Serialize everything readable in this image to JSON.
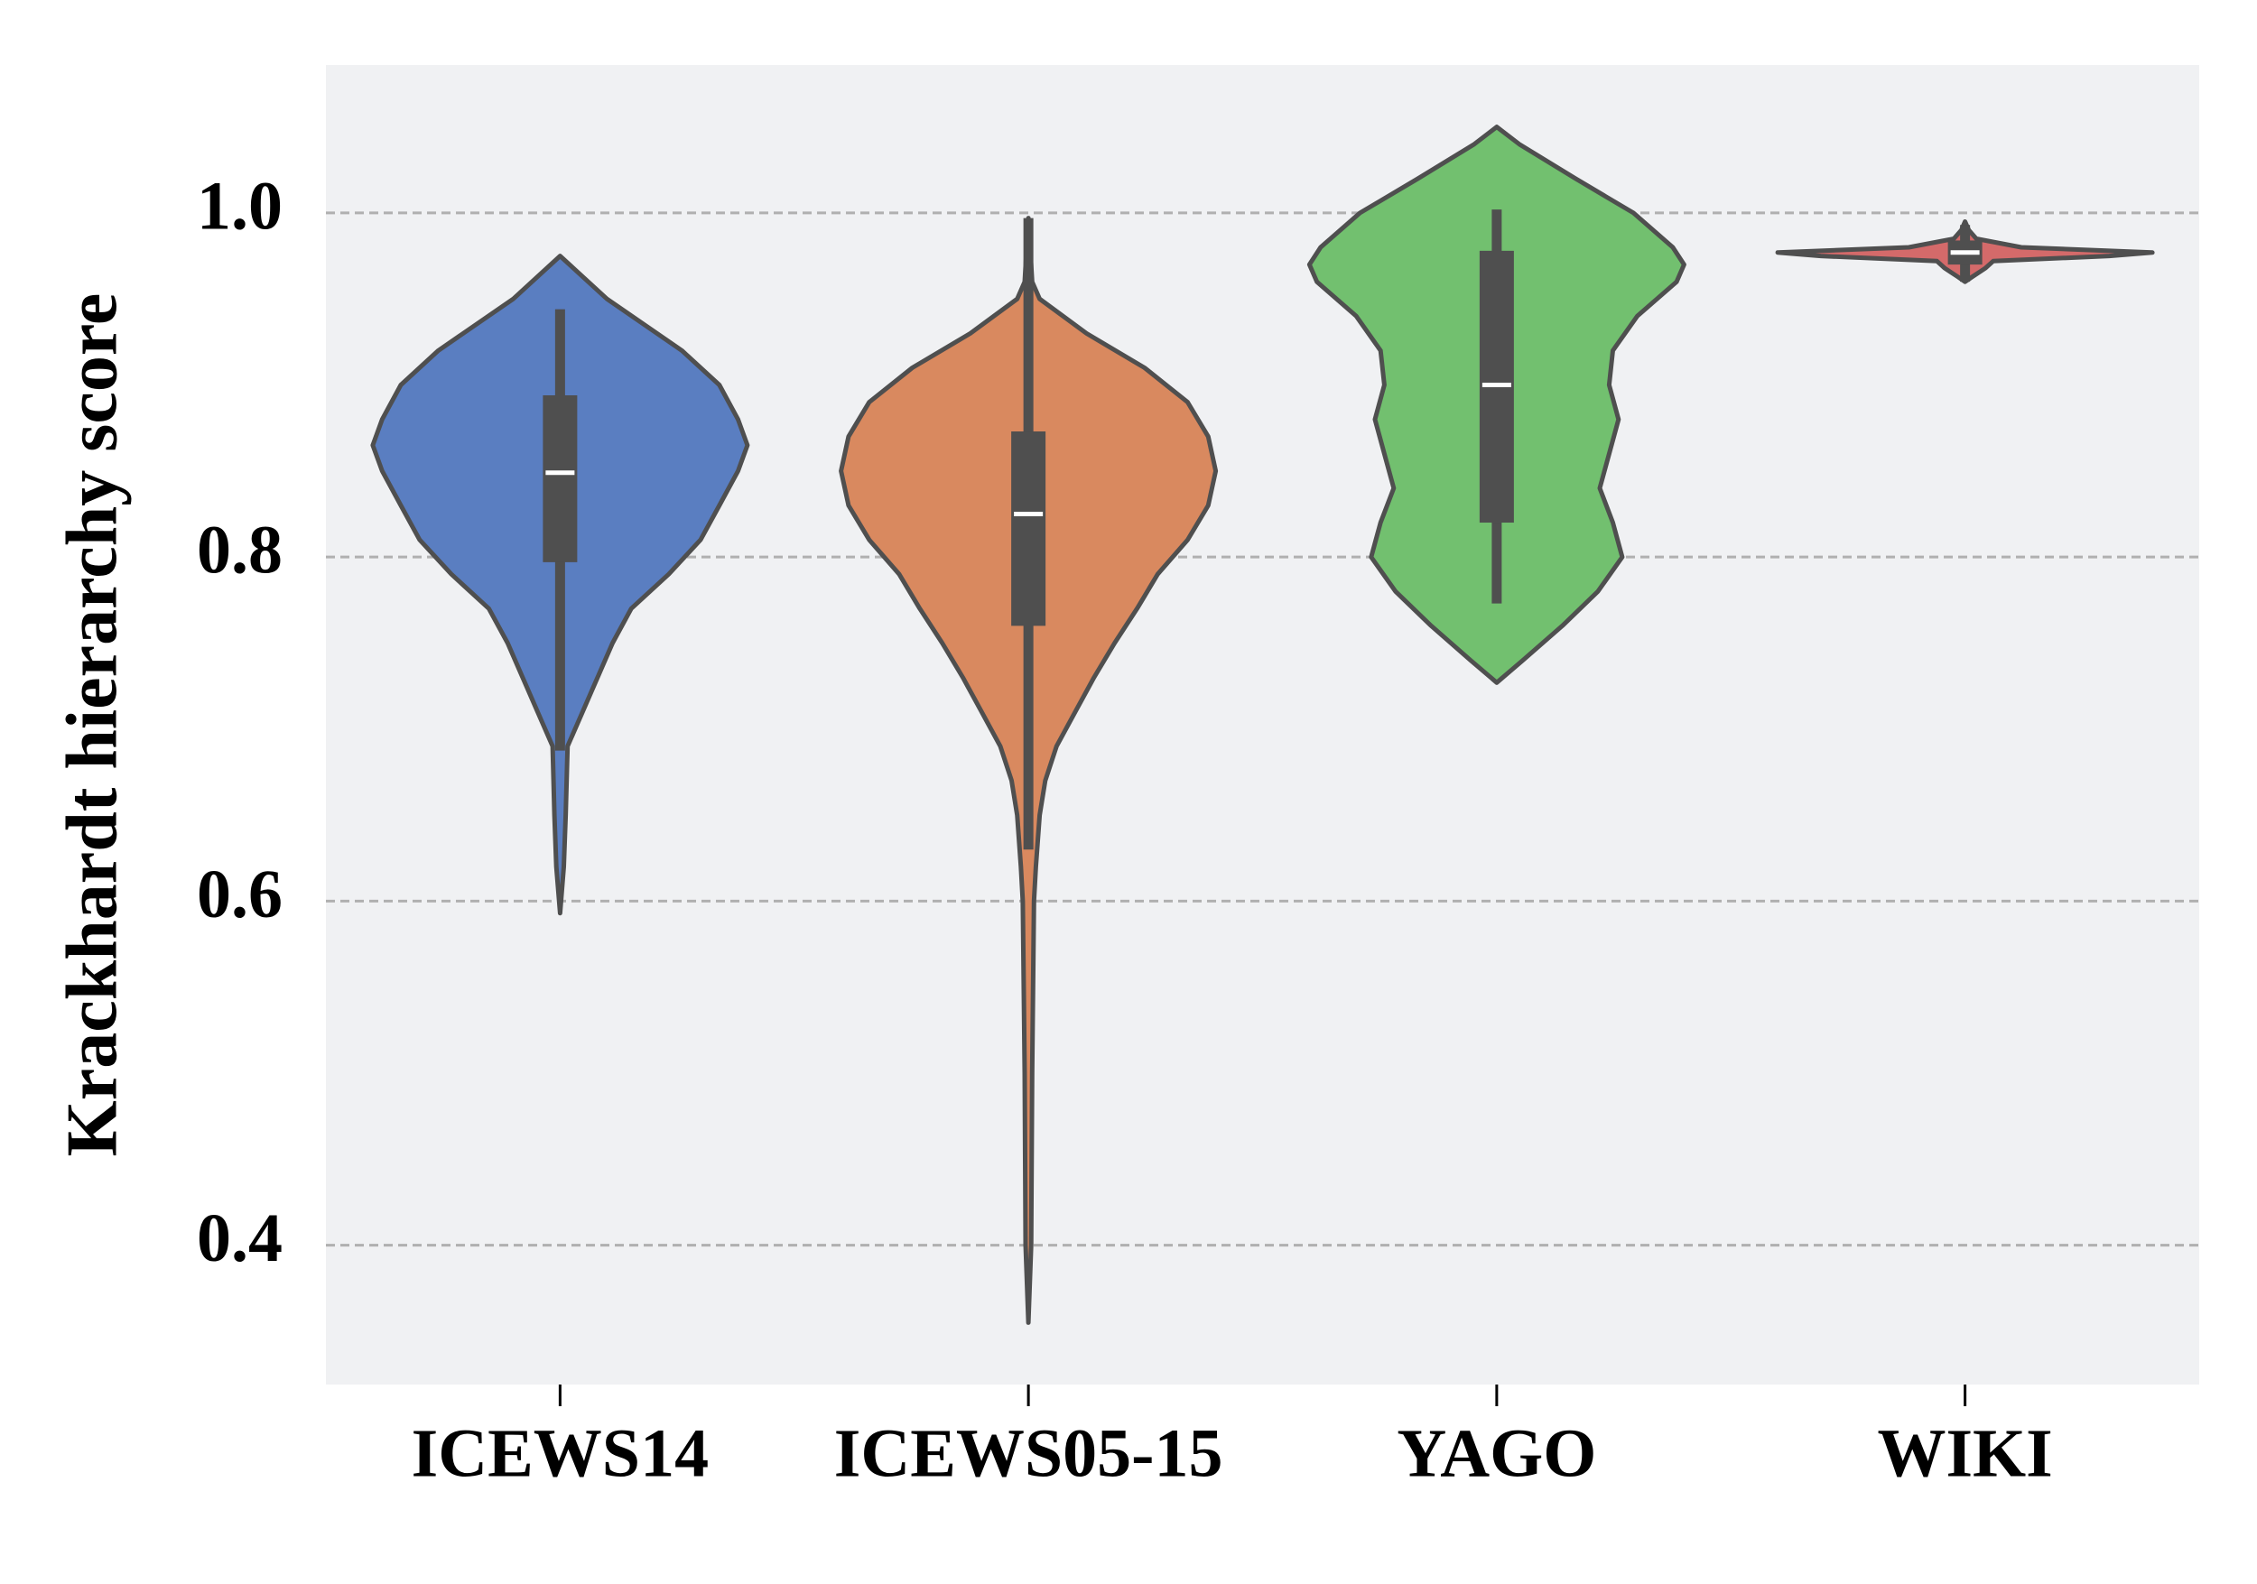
{
  "chart_data": {
    "type": "violin",
    "y_label": "Krackhardt hierarchy score",
    "categories": [
      "ICEWS14",
      "ICEWS05-15",
      "YAGO",
      "WIKI"
    ],
    "ylim": [
      0.319,
      1.086
    ],
    "yticks": [
      0.4,
      0.6,
      0.8,
      {
        "value": 1.0,
        "label": "1.0"
      }
    ],
    "grid": true,
    "series": [
      {
        "color": "#5a7ec1",
        "whisker_low": 0.6875,
        "q1": 0.797,
        "median": 0.849,
        "q3": 0.894,
        "whisker_high": 0.944,
        "kde": {
          "y": [
            0.975,
            0.95,
            0.92,
            0.9,
            0.88,
            0.865,
            0.85,
            0.83,
            0.81,
            0.79,
            0.77,
            0.75,
            0.73,
            0.71,
            0.69,
            0.65,
            0.62,
            0.593
          ],
          "density": [
            0,
            0.25,
            0.65,
            0.85,
            0.95,
            1,
            0.95,
            0.85,
            0.75,
            0.58,
            0.38,
            0.28,
            0.2,
            0.12,
            0.04,
            0.03,
            0.02,
            0
          ]
        }
      },
      {
        "color": "#d9895f",
        "whisker_low": 0.63,
        "q1": 0.76,
        "median": 0.825,
        "q3": 0.873,
        "whisker_high": 0.997,
        "kde": {
          "y": [
            0.997,
            0.96,
            0.95,
            0.93,
            0.91,
            0.89,
            0.87,
            0.85,
            0.83,
            0.81,
            0.79,
            0.77,
            0.75,
            0.73,
            0.71,
            0.69,
            0.67,
            0.65,
            0.62,
            0.6,
            0.5,
            0.4,
            0.355
          ],
          "density": [
            0,
            0.02,
            0.06,
            0.31,
            0.62,
            0.85,
            0.96,
            1,
            0.96,
            0.85,
            0.69,
            0.58,
            0.46,
            0.35,
            0.25,
            0.15,
            0.09,
            0.06,
            0.04,
            0.03,
            0.02,
            0.015,
            0
          ]
        }
      },
      {
        "color": "#72c06f",
        "whisker_low": 0.773,
        "q1": 0.82,
        "median": 0.9,
        "q3": 0.978,
        "whisker_high": 1.002,
        "kde": {
          "y": [
            1.05,
            1.04,
            1.02,
            1.0,
            0.98,
            0.97,
            0.96,
            0.94,
            0.92,
            0.9,
            0.88,
            0.86,
            0.84,
            0.82,
            0.8,
            0.78,
            0.76,
            0.74,
            0.727
          ],
          "density": [
            0,
            0.12,
            0.42,
            0.73,
            0.94,
            1,
            0.96,
            0.75,
            0.62,
            0.6,
            0.65,
            0.6,
            0.55,
            0.62,
            0.67,
            0.54,
            0.35,
            0.14,
            0
          ]
        }
      },
      {
        "color": "#d46a6a",
        "whisker_low": 0.96,
        "q1": 0.97,
        "median": 0.977,
        "q3": 0.984,
        "whisker_high": 0.993,
        "kde": {
          "y": [
            0.995,
            0.99,
            0.985,
            0.98,
            0.977,
            0.975,
            0.972,
            0.968,
            0.963,
            0.96
          ],
          "density": [
            0,
            0.02,
            0.06,
            0.3,
            1,
            0.77,
            0.15,
            0.11,
            0.04,
            0
          ]
        }
      }
    ]
  }
}
